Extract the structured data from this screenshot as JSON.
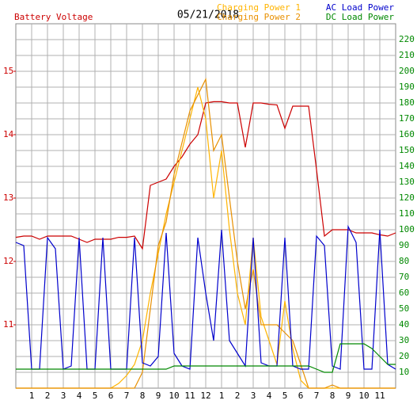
{
  "chart_data": {
    "type": "line",
    "title": "05/21/2018",
    "x": [
      0,
      0.5,
      1,
      1.5,
      2,
      2.5,
      3,
      3.5,
      4,
      4.5,
      5,
      5.5,
      6,
      6.5,
      7,
      7.5,
      8,
      8.5,
      9,
      9.5,
      10,
      10.5,
      11,
      11.5,
      12,
      12.5,
      13,
      13.5,
      14,
      14.5,
      15,
      15.5,
      16,
      16.5,
      17,
      17.5,
      18,
      18.5,
      19,
      19.5,
      20,
      20.5,
      21,
      21.5,
      22,
      22.5,
      23,
      23.5,
      24
    ],
    "xlim": [
      0,
      24
    ],
    "xticks": [
      1,
      2,
      3,
      4,
      5,
      6,
      7,
      8,
      9,
      10,
      11,
      12,
      {
        "value": 13,
        "label": "1"
      },
      {
        "value": 14,
        "label": "2"
      },
      {
        "value": 15,
        "label": "3"
      },
      {
        "value": 16,
        "label": "4"
      },
      {
        "value": 17,
        "label": "5"
      },
      {
        "value": 18,
        "label": "6"
      },
      {
        "value": 19,
        "label": "7"
      },
      {
        "value": 20,
        "label": "8"
      },
      {
        "value": 21,
        "label": "9"
      },
      {
        "value": 22,
        "label": "10"
      },
      {
        "value": 23,
        "label": "11"
      }
    ],
    "ylim": [
      10,
      15.75
    ],
    "yticks": [
      11,
      12,
      13,
      14,
      15
    ],
    "y2lim": [
      0,
      230
    ],
    "y2ticks": [
      10,
      20,
      30,
      40,
      50,
      60,
      70,
      80,
      90,
      100,
      110,
      120,
      130,
      140,
      150,
      160,
      170,
      180,
      190,
      200,
      210,
      220
    ],
    "grid": true,
    "series": [
      {
        "name": "Battery Voltage",
        "color": "#cc0000",
        "axis": "y",
        "values": [
          12.38,
          12.4,
          12.4,
          12.35,
          12.4,
          12.4,
          12.4,
          12.4,
          12.35,
          12.3,
          12.35,
          12.35,
          12.35,
          12.38,
          12.38,
          12.4,
          12.2,
          13.2,
          13.25,
          13.3,
          13.5,
          13.65,
          13.85,
          14.0,
          14.5,
          14.52,
          14.52,
          14.5,
          14.5,
          13.8,
          14.5,
          14.5,
          14.48,
          14.47,
          14.1,
          14.45,
          14.45,
          14.45,
          13.45,
          12.4,
          12.5,
          12.5,
          12.5,
          12.45,
          12.45,
          12.45,
          12.42,
          12.4,
          12.45
        ]
      },
      {
        "name": "Charging Power 1",
        "color": "#ffb400",
        "axis": "y2",
        "values": [
          0,
          0,
          0,
          0,
          0,
          0,
          0,
          0,
          0,
          0,
          0,
          0,
          0,
          3,
          8,
          15,
          30,
          60,
          85,
          110,
          130,
          150,
          170,
          190,
          170,
          120,
          150,
          100,
          60,
          40,
          95,
          45,
          30,
          15,
          55,
          25,
          5,
          0,
          0,
          0,
          0,
          0,
          0,
          0,
          0,
          0,
          0,
          0,
          0
        ]
      },
      {
        "name": "Charging Power 2",
        "color": "#e89000",
        "axis": "y2",
        "values": [
          0,
          0,
          0,
          0,
          0,
          0,
          0,
          0,
          0,
          0,
          0,
          0,
          0,
          0,
          0,
          0,
          10,
          50,
          90,
          105,
          135,
          155,
          175,
          185,
          195,
          150,
          160,
          120,
          80,
          50,
          75,
          40,
          40,
          40,
          35,
          30,
          15,
          0,
          0,
          0,
          2,
          0,
          0,
          0,
          0,
          0,
          0,
          0,
          0
        ]
      },
      {
        "name": "AC Load Power",
        "color": "#0000cc",
        "axis": "y2",
        "values": [
          92,
          90,
          12,
          12,
          95,
          88,
          12,
          14,
          95,
          12,
          12,
          95,
          12,
          12,
          12,
          95,
          16,
          14,
          20,
          98,
          22,
          14,
          12,
          95,
          60,
          30,
          100,
          30,
          22,
          14,
          95,
          16,
          14,
          14,
          95,
          14,
          12,
          12,
          96,
          90,
          14,
          12,
          102,
          92,
          12,
          12,
          100,
          15,
          12
        ]
      },
      {
        "name": "DC Load Power",
        "color": "#008800",
        "axis": "y2",
        "values": [
          12,
          12,
          12,
          12,
          12,
          12,
          12,
          12,
          12,
          12,
          12,
          12,
          12,
          12,
          12,
          12,
          12,
          12,
          12,
          12,
          14,
          14,
          14,
          14,
          14,
          14,
          14,
          14,
          14,
          14,
          14,
          14,
          14,
          14,
          14,
          14,
          14,
          14,
          12,
          10,
          10,
          28,
          28,
          28,
          28,
          25,
          20,
          15,
          15
        ]
      }
    ]
  }
}
